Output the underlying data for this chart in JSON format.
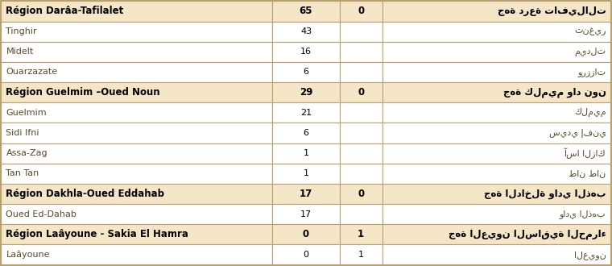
{
  "rows": [
    {
      "type": "header",
      "left": "Région Darâa-Tafilalet",
      "col1": "65",
      "col2": "0",
      "right": "جهة درعة تافيلالت"
    },
    {
      "type": "data",
      "left": "Tinghir",
      "col1": "43",
      "col2": "",
      "right": "تنغير"
    },
    {
      "type": "data",
      "left": "Midelt",
      "col1": "16",
      "col2": "",
      "right": "ميدلت"
    },
    {
      "type": "data",
      "left": "Ouarzazate",
      "col1": "6",
      "col2": "",
      "right": "ورززات"
    },
    {
      "type": "header",
      "left": "Région Guelmim –Oued Noun",
      "col1": "29",
      "col2": "0",
      "right": "جهة كلميم واد نون"
    },
    {
      "type": "data",
      "left": "Guelmim",
      "col1": "21",
      "col2": "",
      "right": "كلميم"
    },
    {
      "type": "data",
      "left": "Sidi Ifni",
      "col1": "6",
      "col2": "",
      "right": "سيدي إفني"
    },
    {
      "type": "data",
      "left": "Assa-Zag",
      "col1": "1",
      "col2": "",
      "right": "آسا الزاك"
    },
    {
      "type": "data",
      "left": "Tan Tan",
      "col1": "1",
      "col2": "",
      "right": "طان طان"
    },
    {
      "type": "header",
      "left": "Région Dakhla-Oued Eddahab",
      "col1": "17",
      "col2": "0",
      "right": "جهة الداخلة وادي الذهب"
    },
    {
      "type": "data",
      "left": "Oued Ed-Dahab",
      "col1": "17",
      "col2": "",
      "right": "وادي الذهب"
    },
    {
      "type": "header",
      "left": "Région Laâyoune - Sakia El Hamra",
      "col1": "0",
      "col2": "1",
      "right": "جهة العيون الساقية الحمراء"
    },
    {
      "type": "data",
      "left": "Laâyoune",
      "col1": "0",
      "col2": "1",
      "right": "العيون"
    }
  ],
  "header_bg": "#f5e6c8",
  "header_border": "#b8a070",
  "data_bg": "#ffffff",
  "data_border": "#c8b88a",
  "header_text_color": "#000000",
  "data_text_color": "#5a4a2a",
  "bold_font": "bold",
  "normal_font": "normal",
  "fig_bg": "#ffffff",
  "outer_border": "#b8a070"
}
